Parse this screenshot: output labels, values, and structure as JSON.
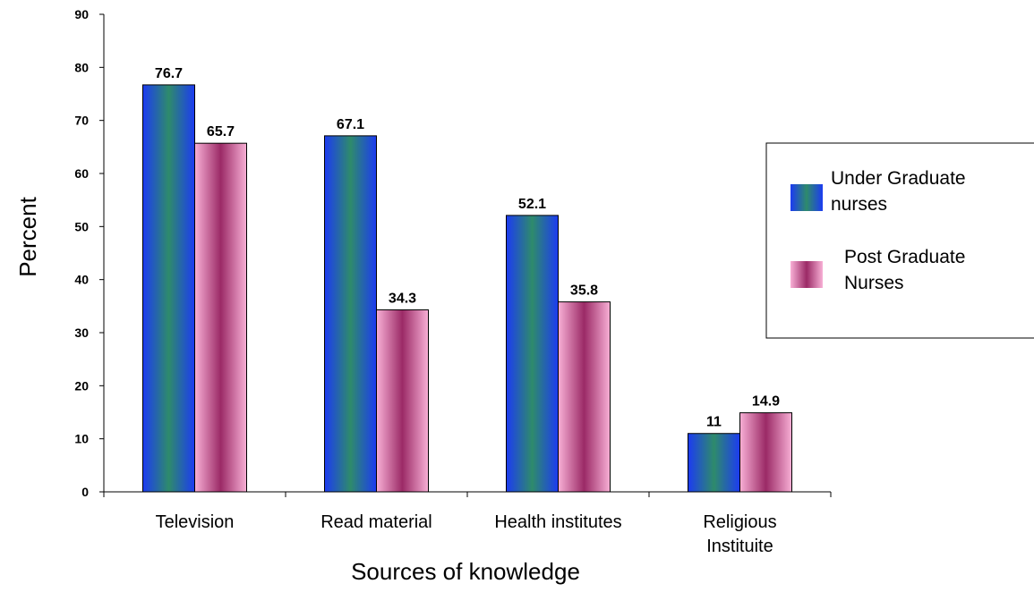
{
  "chart_data": {
    "type": "bar",
    "categories": [
      [
        "Television"
      ],
      [
        "Read material"
      ],
      [
        "Health institutes"
      ],
      [
        "Religious",
        "Instituite"
      ]
    ],
    "series": [
      {
        "name": [
          "Under Graduate",
          "nurses"
        ],
        "values": [
          76.7,
          67.1,
          52.1,
          11
        ],
        "labels": [
          "76.7",
          "67.1",
          "52.1",
          "11"
        ]
      },
      {
        "name": [
          "Post Graduate",
          "Nurses"
        ],
        "values": [
          65.7,
          34.3,
          35.8,
          14.9
        ],
        "labels": [
          "65.7",
          "34.3",
          "35.8",
          "14.9"
        ]
      }
    ],
    "xlabel": "Sources of knowledge",
    "ylabel": "Percent",
    "ylim": [
      0,
      90
    ],
    "yticks": [
      0,
      10,
      20,
      30,
      40,
      50,
      60,
      70,
      80,
      90
    ],
    "grid": false,
    "legend": "right",
    "colors": {
      "series1": [
        "#1f3cf0",
        "#2e8b6e"
      ],
      "series2": [
        "#f7a8d0",
        "#9e2d6a"
      ]
    }
  }
}
